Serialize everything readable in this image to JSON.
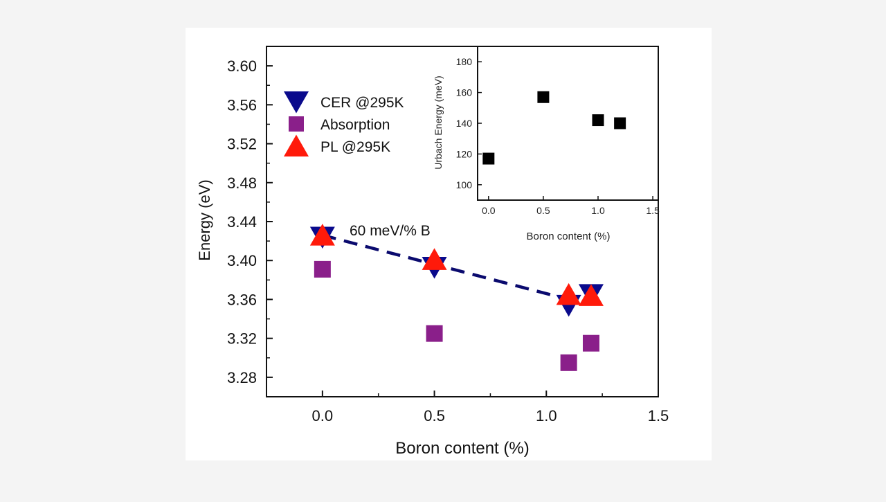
{
  "chart_data": [
    {
      "type": "scatter",
      "xlabel": "Boron content (%)",
      "ylabel": "Energy (eV)",
      "xlim": [
        -0.25,
        1.5
      ],
      "ylim": [
        3.26,
        3.62
      ],
      "x_ticks": [
        "0.0",
        "0.5",
        "1.0",
        "1.5"
      ],
      "x_tick_values": [
        0.0,
        0.5,
        1.0,
        1.5
      ],
      "y_ticks": [
        "3.28",
        "3.32",
        "3.36",
        "3.40",
        "3.44",
        "3.48",
        "3.52",
        "3.56",
        "3.60"
      ],
      "y_tick_values": [
        3.28,
        3.32,
        3.36,
        3.4,
        3.44,
        3.48,
        3.52,
        3.56,
        3.6
      ],
      "legend_position": "upper-left",
      "series": [
        {
          "name": "CER @295K",
          "marker": "triangle-down",
          "color": "#0a0a8c",
          "points": [
            [
              0.0,
              3.424
            ],
            [
              0.5,
              3.393
            ],
            [
              1.1,
              3.354
            ],
            [
              1.2,
              3.365
            ]
          ]
        },
        {
          "name": "Absorption",
          "marker": "square",
          "color": "#8a1f8a",
          "points": [
            [
              0.0,
              3.391
            ],
            [
              0.5,
              3.325
            ],
            [
              1.1,
              3.295
            ],
            [
              1.2,
              3.315
            ]
          ]
        },
        {
          "name": "PL @295K",
          "marker": "triangle-up",
          "color": "#ff1a0a",
          "points": [
            [
              0.0,
              3.426
            ],
            [
              0.5,
              3.401
            ],
            [
              1.1,
              3.365
            ],
            [
              1.2,
              3.364
            ]
          ]
        }
      ],
      "fit_line": {
        "x": [
          0.0,
          1.1
        ],
        "y": [
          3.426,
          3.36
        ],
        "color": "#0a0a6e",
        "style": "dashed"
      },
      "annotation": "60 meV/% B"
    },
    {
      "type": "scatter",
      "xlabel": "Boron content (%)",
      "ylabel": "Urbach Energy (meV)",
      "xlim": [
        -0.1,
        1.55
      ],
      "ylim": [
        90,
        190
      ],
      "x_ticks": [
        "0.0",
        "0.5",
        "1.0",
        "1.5"
      ],
      "x_tick_values": [
        0.0,
        0.5,
        1.0,
        1.5
      ],
      "y_ticks": [
        "100",
        "120",
        "140",
        "160",
        "180"
      ],
      "y_tick_values": [
        100,
        120,
        140,
        160,
        180
      ],
      "series": [
        {
          "marker": "square",
          "color": "#000000",
          "points": [
            [
              0.0,
              117
            ],
            [
              0.5,
              157
            ],
            [
              1.0,
              142
            ],
            [
              1.2,
              140
            ]
          ]
        }
      ]
    }
  ]
}
